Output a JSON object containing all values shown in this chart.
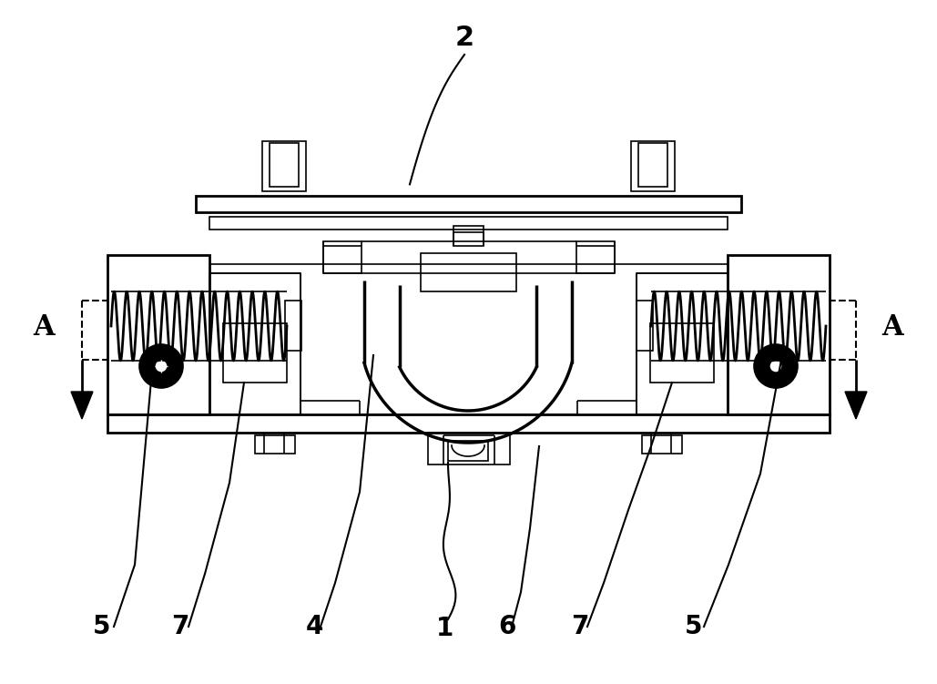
{
  "bg_color": "#ffffff",
  "line_color": "#000000",
  "figsize": [
    10.29,
    7.51
  ],
  "dpi": 100,
  "lw_thin": 1.2,
  "lw_med": 2.0,
  "lw_thick": 2.5
}
